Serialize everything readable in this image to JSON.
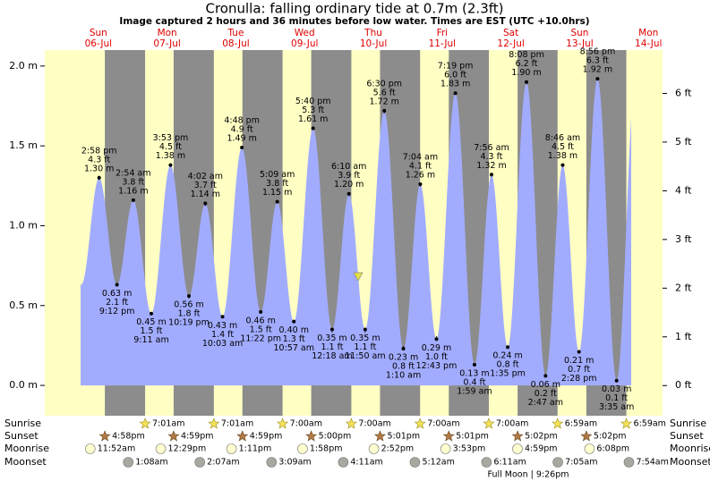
{
  "chart_data": {
    "type": "area",
    "title": "Cronulla: falling  ordinary tide at 0.7m (2.3ft)",
    "subtitle": "Image captured 2 hours and 36 minutes before low water. Times are EST (UTC +10.0hrs)",
    "days": [
      [
        "Sun",
        "06-Jul"
      ],
      [
        "Mon",
        "07-Jul"
      ],
      [
        "Tue",
        "08-Jul"
      ],
      [
        "Wed",
        "09-Jul"
      ],
      [
        "Thu",
        "10-Jul"
      ],
      [
        "Fri",
        "11-Jul"
      ],
      [
        "Sat",
        "12-Jul"
      ],
      [
        "Sun",
        "13-Jul"
      ],
      [
        "Mon",
        "14-Jul"
      ]
    ],
    "x": [
      "2:58 pm",
      "9:12 pm",
      "2:54 am",
      "9:11 am",
      "3:53 pm",
      "10:19 pm",
      "4:02 am",
      "10:03 am",
      "4:48 pm",
      "11:22 pm",
      "5:09 am",
      "10:57 am",
      "5:40 pm",
      "12:18 am",
      "6:10 am",
      "11:50 am",
      "6:30 pm",
      "1:10 am",
      "7:04 am",
      "12:43 pm",
      "7:19 pm",
      "1:59 am",
      "7:56 am",
      "1:35 pm",
      "8:08 pm",
      "2:47 am",
      "8:46 am",
      "2:28 pm",
      "8:56 pm",
      "3:35 am"
    ],
    "values": [
      1.3,
      0.63,
      1.16,
      0.45,
      1.38,
      0.56,
      1.14,
      0.43,
      1.49,
      0.46,
      1.15,
      0.4,
      1.61,
      0.35,
      1.2,
      0.35,
      1.72,
      0.23,
      1.26,
      0.29,
      1.83,
      0.13,
      1.32,
      0.24,
      1.9,
      0.06,
      1.38,
      0.21,
      1.92,
      0.03
    ],
    "value_labels": [
      "1.30 m",
      "0.63 m",
      "1.16 m",
      "0.45 m",
      "1.38 m",
      "0.56 m",
      "1.14 m",
      "0.43 m",
      "1.49 m",
      "0.46 m",
      "1.15 m",
      "0.40 m",
      "1.61 m",
      "0.35 m",
      "1.20 m",
      "0.35 m",
      "1.72 m",
      "0.23 m",
      "1.26 m",
      "0.29 m",
      "1.83 m",
      "0.13 m",
      "1.32 m",
      "0.24 m",
      "1.90 m",
      "0.06 m",
      "1.38 m",
      "0.21 m",
      "1.92 m",
      "0.03 m"
    ],
    "y2_values": [
      4.3,
      2.1,
      3.8,
      1.5,
      4.5,
      1.8,
      3.7,
      1.4,
      4.9,
      1.5,
      3.8,
      1.3,
      5.3,
      1.1,
      3.9,
      1.1,
      5.6,
      0.8,
      4.1,
      1.0,
      6.0,
      0.4,
      4.3,
      0.8,
      6.2,
      0.2,
      4.5,
      0.7,
      6.3,
      0.1
    ],
    "y2_value_labels": [
      "4.3 ft",
      "2.1 ft",
      "3.8 ft",
      "1.5 ft",
      "4.5 ft",
      "1.8 ft",
      "3.7 ft",
      "1.4 ft",
      "4.9 ft",
      "1.5 ft",
      "3.8 ft",
      "1.3 ft",
      "5.3 ft",
      "1.1 ft",
      "3.9 ft",
      "1.1 ft",
      "5.6 ft",
      "0.8 ft",
      "4.1 ft",
      "1.0 ft",
      "6.0 ft",
      "0.4 ft",
      "4.3 ft",
      "0.8 ft",
      "6.2 ft",
      "0.2 ft",
      "4.5 ft",
      "0.7 ft",
      "6.3 ft",
      "0.1 ft"
    ],
    "color": "#a2acff",
    "ylim": [
      -0.19,
      2.1
    ],
    "yticks": [
      {
        "value": 0,
        "label": "0.0 m"
      },
      {
        "value": 0.5,
        "label": "0.5 m"
      },
      {
        "value": 1,
        "label": "1.0 m"
      },
      {
        "value": 1.5,
        "label": "1.5 m"
      },
      {
        "value": 2,
        "label": "2.0 m"
      }
    ],
    "y2lim": [
      -0.62,
      6.89
    ],
    "y2ticks": [
      {
        "value": 0,
        "label": "0 ft"
      },
      {
        "value": 1,
        "label": "1 ft"
      },
      {
        "value": 2,
        "label": "2 ft"
      },
      {
        "value": 3,
        "label": "3 ft"
      },
      {
        "value": 4,
        "label": "4 ft"
      },
      {
        "value": 5,
        "label": "5 ft"
      },
      {
        "value": 6,
        "label": "6 ft"
      }
    ],
    "rows": [
      "Sunrise",
      "Sunset",
      "Moonrise",
      "Moonset"
    ],
    "sunrise": [
      "7:01am",
      "7:01am",
      "7:00am",
      "7:00am",
      "7:00am",
      "7:00am",
      "6:59am",
      "6:59am"
    ],
    "sunset": [
      "4:58pm",
      "4:59pm",
      "4:59pm",
      "5:00pm",
      "5:01pm",
      "5:01pm",
      "5:02pm",
      "5:02pm"
    ],
    "moonrise": [
      "11:52am",
      "12:29pm",
      "1:11pm",
      "1:58pm",
      "2:52pm",
      "3:53pm",
      "4:59pm",
      "6:08pm"
    ],
    "moonset": [
      "1:08am",
      "2:07am",
      "3:09am",
      "4:11am",
      "5:12am",
      "6:11am",
      "7:05am",
      "7:54am"
    ],
    "annotation": "Full Moon | 9:26pm"
  }
}
